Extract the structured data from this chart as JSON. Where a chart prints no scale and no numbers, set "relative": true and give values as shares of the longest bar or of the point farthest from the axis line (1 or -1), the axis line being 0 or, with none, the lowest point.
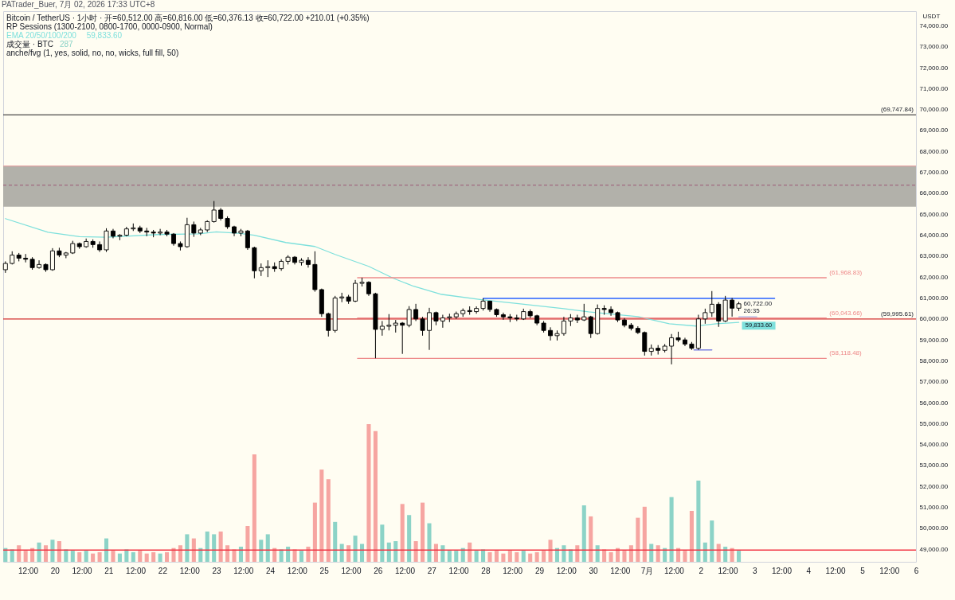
{
  "chart_data": [
    {
      "type": "candlestick",
      "title": "PATrader_Buer, 7月 02, 2026 17:33 UTC+8",
      "subtitle": "Bitcoin / TetherUS · 1小时 · 开=60,512.00 高=60,816.00 低=60,376.13 收=60,722.00 +210.01 (+0.35%)",
      "ylabel": "USDT",
      "color": "#000000",
      "legend": "top left",
      "x": [
        "2026-06-19T02:00",
        "2026-06-19T05:00",
        "2026-06-19T08:00",
        "2026-06-19T11:00",
        "2026-06-19T14:00",
        "2026-06-19T17:00",
        "2026-06-19T20:00",
        "2026-06-19T23:00",
        "2026-06-20T02:00",
        "2026-06-20T05:00",
        "2026-06-20T08:00",
        "2026-06-20T11:00",
        "2026-06-20T14:00",
        "2026-06-20T17:00",
        "2026-06-20T20:00",
        "2026-06-20T23:00",
        "2026-06-21T02:00",
        "2026-06-21T05:00",
        "2026-06-21T08:00",
        "2026-06-21T11:00",
        "2026-06-21T14:00",
        "2026-06-21T17:00",
        "2026-06-21T20:00",
        "2026-06-21T23:00",
        "2026-06-22T02:00",
        "2026-06-22T05:00",
        "2026-06-22T08:00",
        "2026-06-22T11:00",
        "2026-06-22T14:00",
        "2026-06-22T17:00",
        "2026-06-22T20:00",
        "2026-06-22T23:00",
        "2026-06-23T02:00",
        "2026-06-23T05:00",
        "2026-06-23T08:00",
        "2026-06-23T11:00",
        "2026-06-23T14:00",
        "2026-06-23T17:00",
        "2026-06-23T20:00",
        "2026-06-23T23:00",
        "2026-06-24T02:00",
        "2026-06-24T05:00",
        "2026-06-24T08:00",
        "2026-06-24T11:00",
        "2026-06-24T14:00",
        "2026-06-24T17:00",
        "2026-06-24T20:00",
        "2026-06-24T23:00",
        "2026-06-25T02:00",
        "2026-06-25T05:00",
        "2026-06-25T08:00",
        "2026-06-25T11:00",
        "2026-06-25T14:00",
        "2026-06-25T17:00",
        "2026-06-25T20:00",
        "2026-06-25T23:00",
        "2026-06-26T02:00",
        "2026-06-26T05:00",
        "2026-06-26T08:00",
        "2026-06-26T11:00",
        "2026-06-26T14:00",
        "2026-06-26T17:00",
        "2026-06-26T20:00",
        "2026-06-26T23:00",
        "2026-06-27T02:00",
        "2026-06-27T05:00",
        "2026-06-27T08:00",
        "2026-06-27T11:00",
        "2026-06-27T14:00",
        "2026-06-27T17:00",
        "2026-06-27T20:00",
        "2026-06-27T23:00",
        "2026-06-28T02:00",
        "2026-06-28T05:00",
        "2026-06-28T08:00",
        "2026-06-28T11:00",
        "2026-06-28T14:00",
        "2026-06-28T17:00",
        "2026-06-28T20:00",
        "2026-06-28T23:00",
        "2026-06-29T02:00",
        "2026-06-29T05:00",
        "2026-06-29T08:00",
        "2026-06-29T11:00",
        "2026-06-29T14:00",
        "2026-06-29T17:00",
        "2026-06-29T20:00",
        "2026-06-29T23:00",
        "2026-06-30T02:00",
        "2026-06-30T05:00",
        "2026-06-30T08:00",
        "2026-06-30T11:00",
        "2026-06-30T14:00",
        "2026-06-30T17:00",
        "2026-06-30T20:00",
        "2026-06-30T23:00",
        "2026-07-01T02:00",
        "2026-07-01T05:00",
        "2026-07-01T08:00",
        "2026-07-01T11:00",
        "2026-07-01T14:00",
        "2026-07-01T17:00",
        "2026-07-01T20:00",
        "2026-07-01T23:00",
        "2026-07-02T02:00",
        "2026-07-02T05:00",
        "2026-07-02T08:00",
        "2026-07-02T11:00",
        "2026-07-02T14:00",
        "2026-07-02T17:00"
      ],
      "ohlc": [
        [
          62350,
          62750,
          62200,
          62650
        ],
        [
          62650,
          63230,
          62600,
          63050
        ],
        [
          63050,
          63150,
          62750,
          62900
        ],
        [
          62900,
          63100,
          62700,
          62850
        ],
        [
          62850,
          62950,
          62350,
          62450
        ],
        [
          62450,
          62800,
          62400,
          62600
        ],
        [
          62600,
          62650,
          62250,
          62350
        ],
        [
          62350,
          63380,
          62300,
          63250
        ],
        [
          63250,
          63400,
          62950,
          63050
        ],
        [
          63050,
          63200,
          62900,
          63150
        ],
        [
          63150,
          63730,
          63100,
          63600
        ],
        [
          63600,
          63650,
          63350,
          63450
        ],
        [
          63450,
          63840,
          63400,
          63700
        ],
        [
          63700,
          63800,
          63400,
          63550
        ],
        [
          63550,
          63700,
          63200,
          63300
        ],
        [
          63300,
          64330,
          63200,
          64200
        ],
        [
          64200,
          64300,
          63850,
          63950
        ],
        [
          63950,
          64050,
          63760,
          64000
        ],
        [
          64000,
          64400,
          63950,
          64300
        ],
        [
          64300,
          64560,
          64200,
          64350
        ],
        [
          64350,
          64450,
          64100,
          64200
        ],
        [
          64200,
          64350,
          63950,
          64150
        ],
        [
          64150,
          64250,
          63900,
          64100
        ],
        [
          64100,
          64300,
          64000,
          64150
        ],
        [
          64150,
          64250,
          63950,
          64050
        ],
        [
          64050,
          64100,
          63500,
          63600
        ],
        [
          63600,
          63700,
          63270,
          63450
        ],
        [
          63450,
          64830,
          63400,
          64500
        ],
        [
          64500,
          64650,
          63920,
          64100
        ],
        [
          64100,
          64350,
          64000,
          64250
        ],
        [
          64250,
          64710,
          64150,
          64650
        ],
        [
          64650,
          65630,
          64600,
          65200
        ],
        [
          65200,
          65300,
          64700,
          64800
        ],
        [
          64800,
          64900,
          64300,
          64400
        ],
        [
          64400,
          64450,
          63950,
          64100
        ],
        [
          64100,
          64300,
          63950,
          64200
        ],
        [
          64200,
          64250,
          63300,
          63400
        ],
        [
          63400,
          63450,
          61940,
          62300
        ],
        [
          62300,
          62650,
          62050,
          62450
        ],
        [
          62450,
          62800,
          62000,
          62500
        ],
        [
          62500,
          62700,
          62250,
          62400
        ],
        [
          62400,
          62850,
          62300,
          62750
        ],
        [
          62750,
          63040,
          62600,
          62950
        ],
        [
          62950,
          63000,
          62600,
          62700
        ],
        [
          62700,
          62900,
          62550,
          62800
        ],
        [
          62800,
          62950,
          62450,
          62600
        ],
        [
          62600,
          63230,
          61300,
          61400
        ],
        [
          61400,
          61450,
          60100,
          60250
        ],
        [
          60250,
          60300,
          59160,
          59450
        ],
        [
          59450,
          61100,
          59350,
          61000
        ],
        [
          61000,
          61250,
          60800,
          61050
        ],
        [
          61050,
          61150,
          60720,
          60850
        ],
        [
          60850,
          61860,
          60800,
          61700
        ],
        [
          61700,
          61970,
          61550,
          61750
        ],
        [
          61750,
          61800,
          61100,
          61200
        ],
        [
          61200,
          61250,
          58120,
          59500
        ],
        [
          59500,
          59900,
          59200,
          59650
        ],
        [
          59650,
          60230,
          59450,
          59700
        ],
        [
          59700,
          59950,
          59350,
          59800
        ],
        [
          59800,
          59850,
          58330,
          59700
        ],
        [
          59700,
          60610,
          59600,
          60450
        ],
        [
          60450,
          60720,
          59900,
          60000
        ],
        [
          60000,
          60100,
          59200,
          59450
        ],
        [
          59450,
          60530,
          58520,
          60300
        ],
        [
          60300,
          60350,
          59700,
          59900
        ],
        [
          59900,
          60200,
          59580,
          60050
        ],
        [
          60050,
          60250,
          59850,
          60100
        ],
        [
          60100,
          60350,
          60000,
          60250
        ],
        [
          60250,
          60500,
          60100,
          60400
        ],
        [
          60400,
          60600,
          60200,
          60350
        ],
        [
          60350,
          60600,
          60250,
          60500
        ],
        [
          60500,
          60980,
          60400,
          60850
        ],
        [
          60850,
          60870,
          60340,
          60450
        ],
        [
          60450,
          60500,
          60100,
          60200
        ],
        [
          60200,
          60300,
          59960,
          60100
        ],
        [
          60100,
          60230,
          59850,
          60050
        ],
        [
          60050,
          60200,
          59900,
          60000
        ],
        [
          60000,
          60490,
          59950,
          60350
        ],
        [
          60350,
          60450,
          60040,
          60150
        ],
        [
          60150,
          60200,
          59700,
          59800
        ],
        [
          59800,
          59900,
          59350,
          59450
        ],
        [
          59450,
          59600,
          58970,
          59200
        ],
        [
          59200,
          59450,
          58970,
          59300
        ],
        [
          59300,
          60100,
          59200,
          59900
        ],
        [
          59900,
          60230,
          59660,
          60050
        ],
        [
          60050,
          60200,
          59800,
          59950
        ],
        [
          59950,
          60720,
          59900,
          60100
        ],
        [
          60100,
          60150,
          59090,
          59300
        ],
        [
          59300,
          60690,
          59250,
          60500
        ],
        [
          60500,
          60650,
          60200,
          60450
        ],
        [
          60450,
          60600,
          60150,
          60300
        ],
        [
          60300,
          60350,
          59850,
          59950
        ],
        [
          59950,
          60040,
          59600,
          59700
        ],
        [
          59700,
          59800,
          59450,
          59550
        ],
        [
          59550,
          59650,
          59280,
          59350
        ],
        [
          59350,
          59400,
          58250,
          58450
        ],
        [
          58450,
          58780,
          58250,
          58600
        ],
        [
          58600,
          58750,
          58300,
          58500
        ],
        [
          58500,
          58800,
          58400,
          58700
        ],
        [
          58700,
          59280,
          57830,
          59100
        ],
        [
          59100,
          59390,
          58900,
          59000
        ],
        [
          59000,
          59100,
          58700,
          58800
        ],
        [
          58800,
          58900,
          58520,
          58600
        ],
        [
          58600,
          60200,
          58520,
          60000
        ],
        [
          60000,
          60490,
          59770,
          60300
        ],
        [
          60300,
          61330,
          60100,
          60700
        ],
        [
          60700,
          60800,
          59620,
          59900
        ],
        [
          59900,
          61100,
          59850,
          60900
        ],
        [
          60900,
          61000,
          60110,
          60512
        ],
        [
          60512,
          60816,
          60376,
          60722
        ]
      ],
      "series": [
        {
          "type": "line",
          "name": "EMA 20/50/100/200",
          "color": "#7ee0dc",
          "x": [
            "2026-06-19T02:00",
            "2026-06-19T21:00",
            "2026-06-20T11:00",
            "2026-06-20T23:00",
            "2026-06-21T22:00",
            "2026-06-22T16:00",
            "2026-06-23T00:00",
            "2026-06-23T10:00",
            "2026-06-23T17:00",
            "2026-06-24T07:00",
            "2026-06-24T20:00",
            "2026-06-25T05:00",
            "2026-06-25T20:00",
            "2026-06-26T07:00",
            "2026-06-26T16:00",
            "2026-06-27T04:00",
            "2026-06-27T23:00",
            "2026-06-28T14:00",
            "2026-06-29T11:00",
            "2026-06-29T22:00",
            "2026-06-30T20:00",
            "2026-07-01T10:00",
            "2026-07-01T22:00",
            "2026-07-02T07:00",
            "2026-07-02T17:00"
          ],
          "values": [
            64790,
            64140,
            63930,
            63900,
            64030,
            64060,
            64160,
            64090,
            64000,
            63650,
            63460,
            63080,
            62510,
            61940,
            61560,
            61180,
            60910,
            60740,
            60490,
            60340,
            60110,
            59770,
            59660,
            59770,
            59833.6
          ],
          "value_labels": [
            null,
            null,
            null,
            null,
            null,
            null,
            null,
            null,
            null,
            null,
            null,
            null,
            null,
            null,
            null,
            null,
            null,
            null,
            null,
            null,
            null,
            null,
            null,
            null,
            "59,833.60"
          ]
        },
        {
          "type": "line",
          "color": "#ee8a8a",
          "x": [
            "2026-06-25T15:00",
            "2026-07-04T08:00"
          ],
          "values": [
            61968.83,
            61968.83
          ],
          "value_labels": [
            null,
            "(61,968.83)"
          ]
        },
        {
          "type": "line",
          "color": "#ee8a8a",
          "x": [
            "2026-06-25T15:00",
            "2026-07-04T08:00"
          ],
          "values": [
            60043.66,
            60043.66
          ],
          "value_labels": [
            null,
            "(60,043.66)"
          ]
        },
        {
          "type": "line",
          "color": "#ee8a8a",
          "x": [
            "2026-06-25T15:00",
            "2026-07-04T08:00"
          ],
          "values": [
            58118.48,
            58118.48
          ],
          "value_labels": [
            null,
            "(58,118.48)"
          ]
        },
        {
          "type": "line",
          "color": "#2962ff",
          "x": [
            "2026-06-27T23:00",
            "2026-07-03T09:00"
          ],
          "values": [
            60980,
            60980
          ]
        },
        {
          "type": "line",
          "color": "#7a7fe0",
          "x": [
            "2026-07-01T21:00",
            "2026-07-02T05:00"
          ],
          "values": [
            58520,
            58520
          ]
        },
        {
          "type": "line",
          "color": "#a9b0e6",
          "x": [
            "2026-07-02T17:00",
            "2026-07-03T01:00"
          ],
          "values": [
            60100,
            60100
          ]
        }
      ],
      "ref_lines": [
        {
          "axis": "y",
          "value": 69747.84,
          "label": "(69,747.84)",
          "color": "#4a4a4a"
        },
        {
          "axis": "y",
          "value": 59995.61,
          "label": "(59,995.61)",
          "color": "#d32f2f"
        },
        {
          "axis": "y",
          "value": 67300,
          "color": "#e3a3a3"
        },
        {
          "axis": "y",
          "value": 66390,
          "color": "#a06a80",
          "line_style": "dashed"
        },
        {
          "axis": "y",
          "value": 48960,
          "color": "#f23645"
        }
      ],
      "bands": [
        {
          "axis": "y",
          "from": 65360,
          "to": 67300,
          "color": "#b2b1aa"
        }
      ],
      "annotations": [
        "RP Sessions (1300-2100, 0800-1700, 0000-0900, Normal)",
        "anche/fvg (1, yes, solid, no, no, wicks, full fill, 50)",
        {
          "text": "60,722.00",
          "x": "2026-07-02T17:00",
          "y": 60722
        },
        {
          "text": "26:35",
          "x": "2026-07-02T17:00",
          "y": 60722
        }
      ],
      "xlim": [
        "2026-06-19T01:00",
        "2026-07-06T00:00"
      ],
      "xticks": [
        {
          "value": "2026-06-19T12:00",
          "label": "12:00"
        },
        {
          "value": "2026-06-20T00:00",
          "label": "20"
        },
        {
          "value": "2026-06-20T12:00",
          "label": "12:00"
        },
        {
          "value": "2026-06-21T00:00",
          "label": "21"
        },
        {
          "value": "2026-06-21T12:00",
          "label": "12:00"
        },
        {
          "value": "2026-06-22T00:00",
          "label": "22"
        },
        {
          "value": "2026-06-22T12:00",
          "label": "12:00"
        },
        {
          "value": "2026-06-23T00:00",
          "label": "23"
        },
        {
          "value": "2026-06-23T12:00",
          "label": "12:00"
        },
        {
          "value": "2026-06-24T00:00",
          "label": "24"
        },
        {
          "value": "2026-06-24T12:00",
          "label": "12:00"
        },
        {
          "value": "2026-06-25T00:00",
          "label": "25"
        },
        {
          "value": "2026-06-25T12:00",
          "label": "12:00"
        },
        {
          "value": "2026-06-26T00:00",
          "label": "26"
        },
        {
          "value": "2026-06-26T12:00",
          "label": "12:00"
        },
        {
          "value": "2026-06-27T00:00",
          "label": "27"
        },
        {
          "value": "2026-06-27T12:00",
          "label": "12:00"
        },
        {
          "value": "2026-06-28T00:00",
          "label": "28"
        },
        {
          "value": "2026-06-28T12:00",
          "label": "12:00"
        },
        {
          "value": "2026-06-29T00:00",
          "label": "29"
        },
        {
          "value": "2026-06-29T12:00",
          "label": "12:00"
        },
        {
          "value": "2026-06-30T00:00",
          "label": "30"
        },
        {
          "value": "2026-06-30T12:00",
          "label": "12:00"
        },
        {
          "value": "2026-07-01T00:00",
          "label": "7月"
        },
        {
          "value": "2026-07-01T12:00",
          "label": "12:00"
        },
        {
          "value": "2026-07-02T00:00",
          "label": "2"
        },
        {
          "value": "2026-07-02T12:00",
          "label": "12:00"
        },
        {
          "value": "2026-07-03T00:00",
          "label": "3"
        },
        {
          "value": "2026-07-03T12:00",
          "label": "12:00"
        },
        {
          "value": "2026-07-04T00:00",
          "label": "4"
        },
        {
          "value": "2026-07-04T12:00",
          "label": "12:00"
        },
        {
          "value": "2026-07-05T00:00",
          "label": "5"
        },
        {
          "value": "2026-07-05T12:00",
          "label": "12:00"
        },
        {
          "value": "2026-07-06T00:00",
          "label": "6"
        }
      ],
      "ylim": [
        48400,
        74700
      ],
      "yticks": [
        {
          "value": 49000,
          "label": "49,000.00"
        },
        {
          "value": 50000,
          "label": "50,000.00"
        },
        {
          "value": 51000,
          "label": "51,000.00"
        },
        {
          "value": 52000,
          "label": "52,000.00"
        },
        {
          "value": 53000,
          "label": "53,000.00"
        },
        {
          "value": 54000,
          "label": "54,000.00"
        },
        {
          "value": 55000,
          "label": "55,000.00"
        },
        {
          "value": 56000,
          "label": "56,000.00"
        },
        {
          "value": 57000,
          "label": "57,000.00"
        },
        {
          "value": 58000,
          "label": "58,000.00"
        },
        {
          "value": 59000,
          "label": "59,000.00"
        },
        {
          "value": 60000,
          "label": "60,000.00"
        },
        {
          "value": 61000,
          "label": "61,000.00"
        },
        {
          "value": 62000,
          "label": "62,000.00"
        },
        {
          "value": 63000,
          "label": "63,000.00"
        },
        {
          "value": 64000,
          "label": "64,000.00"
        },
        {
          "value": 65000,
          "label": "65,000.00"
        },
        {
          "value": 66000,
          "label": "66,000.00"
        },
        {
          "value": 67000,
          "label": "67,000.00"
        },
        {
          "value": 68000,
          "label": "68,000.00"
        },
        {
          "value": 69000,
          "label": "69,000.00"
        },
        {
          "value": 70000,
          "label": "70,000.00"
        },
        {
          "value": 71000,
          "label": "71,000.00"
        },
        {
          "value": 72000,
          "label": "72,000.00"
        },
        {
          "value": 73000,
          "label": "73,000.00"
        },
        {
          "value": 74000,
          "label": "74,000.00"
        }
      ]
    },
    {
      "type": "bar",
      "relative": true,
      "legend": "top left",
      "annotations": [
        "287"
      ],
      "tick_labels": false,
      "xlim": [
        "2026-06-19T01:00",
        "2026-07-06T00:00"
      ],
      "x": [
        "2026-06-19T02:00",
        "2026-06-19T05:00",
        "2026-06-19T08:00",
        "2026-06-19T11:00",
        "2026-06-19T14:00",
        "2026-06-19T17:00",
        "2026-06-19T20:00",
        "2026-06-19T23:00",
        "2026-06-20T02:00",
        "2026-06-20T05:00",
        "2026-06-20T08:00",
        "2026-06-20T11:00",
        "2026-06-20T14:00",
        "2026-06-20T17:00",
        "2026-06-20T20:00",
        "2026-06-20T23:00",
        "2026-06-21T02:00",
        "2026-06-21T05:00",
        "2026-06-21T08:00",
        "2026-06-21T11:00",
        "2026-06-21T14:00",
        "2026-06-21T17:00",
        "2026-06-21T20:00",
        "2026-06-21T23:00",
        "2026-06-22T02:00",
        "2026-06-22T05:00",
        "2026-06-22T08:00",
        "2026-06-22T11:00",
        "2026-06-22T14:00",
        "2026-06-22T17:00",
        "2026-06-22T20:00",
        "2026-06-22T23:00",
        "2026-06-23T02:00",
        "2026-06-23T05:00",
        "2026-06-23T08:00",
        "2026-06-23T11:00",
        "2026-06-23T14:00",
        "2026-06-23T17:00",
        "2026-06-23T20:00",
        "2026-06-23T23:00",
        "2026-06-24T02:00",
        "2026-06-24T05:00",
        "2026-06-24T08:00",
        "2026-06-24T11:00",
        "2026-06-24T14:00",
        "2026-06-24T17:00",
        "2026-06-24T20:00",
        "2026-06-24T23:00",
        "2026-06-25T02:00",
        "2026-06-25T05:00",
        "2026-06-25T08:00",
        "2026-06-25T11:00",
        "2026-06-25T14:00",
        "2026-06-25T17:00",
        "2026-06-25T20:00",
        "2026-06-25T23:00",
        "2026-06-26T02:00",
        "2026-06-26T05:00",
        "2026-06-26T08:00",
        "2026-06-26T11:00",
        "2026-06-26T14:00",
        "2026-06-26T17:00",
        "2026-06-26T20:00",
        "2026-06-26T23:00",
        "2026-06-27T02:00",
        "2026-06-27T05:00",
        "2026-06-27T08:00",
        "2026-06-27T11:00",
        "2026-06-27T14:00",
        "2026-06-27T17:00",
        "2026-06-27T20:00",
        "2026-06-27T23:00",
        "2026-06-28T02:00",
        "2026-06-28T05:00",
        "2026-06-28T08:00",
        "2026-06-28T11:00",
        "2026-06-28T14:00",
        "2026-06-28T17:00",
        "2026-06-28T20:00",
        "2026-06-28T23:00",
        "2026-06-29T02:00",
        "2026-06-29T05:00",
        "2026-06-29T08:00",
        "2026-06-29T11:00",
        "2026-06-29T14:00",
        "2026-06-29T17:00",
        "2026-06-29T20:00",
        "2026-06-29T23:00",
        "2026-06-30T02:00",
        "2026-06-30T05:00",
        "2026-06-30T08:00",
        "2026-06-30T11:00",
        "2026-06-30T14:00",
        "2026-06-30T17:00",
        "2026-06-30T20:00",
        "2026-06-30T23:00",
        "2026-07-01T02:00",
        "2026-07-01T05:00",
        "2026-07-01T08:00",
        "2026-07-01T11:00",
        "2026-07-01T14:00",
        "2026-07-01T17:00",
        "2026-07-01T20:00",
        "2026-07-01T23:00",
        "2026-07-02T02:00",
        "2026-07-02T05:00",
        "2026-07-02T08:00",
        "2026-07-02T11:00",
        "2026-07-02T14:00",
        "2026-07-02T17:00"
      ],
      "series": [
        {
          "name": "成交量 · BTC",
          "values": [
            0.1,
            0.09,
            0.12,
            0.08,
            0.1,
            0.14,
            0.12,
            0.16,
            0.15,
            0.09,
            0.08,
            0.07,
            0.08,
            0.06,
            0.07,
            0.17,
            0.08,
            0.06,
            0.09,
            0.07,
            0.08,
            0.06,
            0.07,
            0.06,
            0.07,
            0.1,
            0.12,
            0.2,
            0.17,
            0.1,
            0.22,
            0.2,
            0.22,
            0.12,
            0.09,
            0.11,
            0.26,
            0.78,
            0.16,
            0.2,
            0.1,
            0.09,
            0.11,
            0.09,
            0.08,
            0.11,
            0.43,
            0.67,
            0.6,
            0.29,
            0.13,
            0.12,
            0.19,
            0.13,
            1.0,
            0.95,
            0.27,
            0.14,
            0.15,
            0.42,
            0.34,
            0.15,
            0.43,
            0.28,
            0.13,
            0.12,
            0.08,
            0.08,
            0.1,
            0.14,
            0.08,
            0.09,
            0.07,
            0.08,
            0.06,
            0.08,
            0.07,
            0.08,
            0.06,
            0.07,
            0.08,
            0.16,
            0.1,
            0.12,
            0.09,
            0.12,
            0.41,
            0.33,
            0.12,
            0.09,
            0.07,
            0.1,
            0.08,
            0.12,
            0.32,
            0.4,
            0.13,
            0.12,
            0.1,
            0.47,
            0.1,
            0.08,
            0.37,
            0.59,
            0.14,
            0.3,
            0.13,
            0.11,
            0.1,
            0.08
          ],
          "colors": [
            "#8cd3c7",
            "#8cd3c7",
            "#f6a5a1",
            "#f6a5a1",
            "#f6a5a1",
            "#8cd3c7",
            "#f6a5a1",
            "#8cd3c7",
            "#f6a5a1",
            "#8cd3c7",
            "#8cd3c7",
            "#f6a5a1",
            "#8cd3c7",
            "#f6a5a1",
            "#f6a5a1",
            "#8cd3c7",
            "#f6a5a1",
            "#8cd3c7",
            "#8cd3c7",
            "#8cd3c7",
            "#f6a5a1",
            "#f6a5a1",
            "#f6a5a1",
            "#8cd3c7",
            "#f6a5a1",
            "#f6a5a1",
            "#f6a5a1",
            "#8cd3c7",
            "#f6a5a1",
            "#8cd3c7",
            "#8cd3c7",
            "#8cd3c7",
            "#f6a5a1",
            "#f6a5a1",
            "#f6a5a1",
            "#8cd3c7",
            "#f6a5a1",
            "#f6a5a1",
            "#8cd3c7",
            "#8cd3c7",
            "#f6a5a1",
            "#8cd3c7",
            "#8cd3c7",
            "#f6a5a1",
            "#8cd3c7",
            "#f6a5a1",
            "#f6a5a1",
            "#f6a5a1",
            "#f6a5a1",
            "#8cd3c7",
            "#8cd3c7",
            "#f6a5a1",
            "#8cd3c7",
            "#8cd3c7",
            "#f6a5a1",
            "#f6a5a1",
            "#8cd3c7",
            "#8cd3c7",
            "#8cd3c7",
            "#f6a5a1",
            "#8cd3c7",
            "#f6a5a1",
            "#f6a5a1",
            "#8cd3c7",
            "#f6a5a1",
            "#8cd3c7",
            "#8cd3c7",
            "#8cd3c7",
            "#8cd3c7",
            "#f6a5a1",
            "#8cd3c7",
            "#8cd3c7",
            "#f6a5a1",
            "#f6a5a1",
            "#f6a5a1",
            "#f6a5a1",
            "#f6a5a1",
            "#8cd3c7",
            "#f6a5a1",
            "#f6a5a1",
            "#f6a5a1",
            "#f6a5a1",
            "#8cd3c7",
            "#8cd3c7",
            "#8cd3c7",
            "#f6a5a1",
            "#8cd3c7",
            "#f6a5a1",
            "#8cd3c7",
            "#f6a5a1",
            "#f6a5a1",
            "#f6a5a1",
            "#f6a5a1",
            "#f6a5a1",
            "#f6a5a1",
            "#f6a5a1",
            "#8cd3c7",
            "#f6a5a1",
            "#8cd3c7",
            "#8cd3c7",
            "#f6a5a1",
            "#f6a5a1",
            "#f6a5a1",
            "#8cd3c7",
            "#8cd3c7",
            "#8cd3c7",
            "#f6a5a1",
            "#8cd3c7",
            "#f6a5a1",
            "#8cd3c7"
          ]
        }
      ]
    }
  ]
}
